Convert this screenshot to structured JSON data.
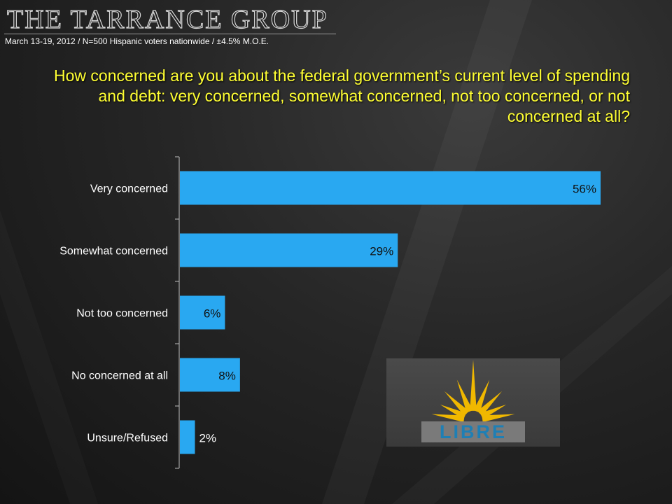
{
  "header": {
    "brand": "THE TARRANCE GROUP",
    "subtitle": "March 13-19, 2012 / N=500 Hispanic voters nationwide / ±4.5% M.O.E."
  },
  "question": "How concerned are you about the federal government’s current level of spending and debt: very concerned, somewhat concerned, not too concerned, or not concerned at all?",
  "logo": {
    "text": "LIBRE",
    "colors": {
      "burst": "#f0b800",
      "text": "#1f7fb4",
      "plate": "#7a7a7a"
    }
  },
  "colors": {
    "bar": "#29a8f1",
    "title": "#ffff33",
    "label": "#ffffff",
    "value": "#111111"
  },
  "chart_data": {
    "type": "bar",
    "orientation": "horizontal",
    "categories": [
      "Very concerned",
      "Somewhat concerned",
      "Not too concerned",
      "No concerned at all",
      "Unsure/Refused"
    ],
    "values": [
      56,
      29,
      6,
      8,
      2
    ],
    "value_labels": [
      "56%",
      "29%",
      "6%",
      "8%",
      "2%"
    ],
    "xlim": [
      0,
      56
    ],
    "unit": "%",
    "title": "",
    "xlabel": "",
    "ylabel": "",
    "legend": false,
    "grid": false
  }
}
